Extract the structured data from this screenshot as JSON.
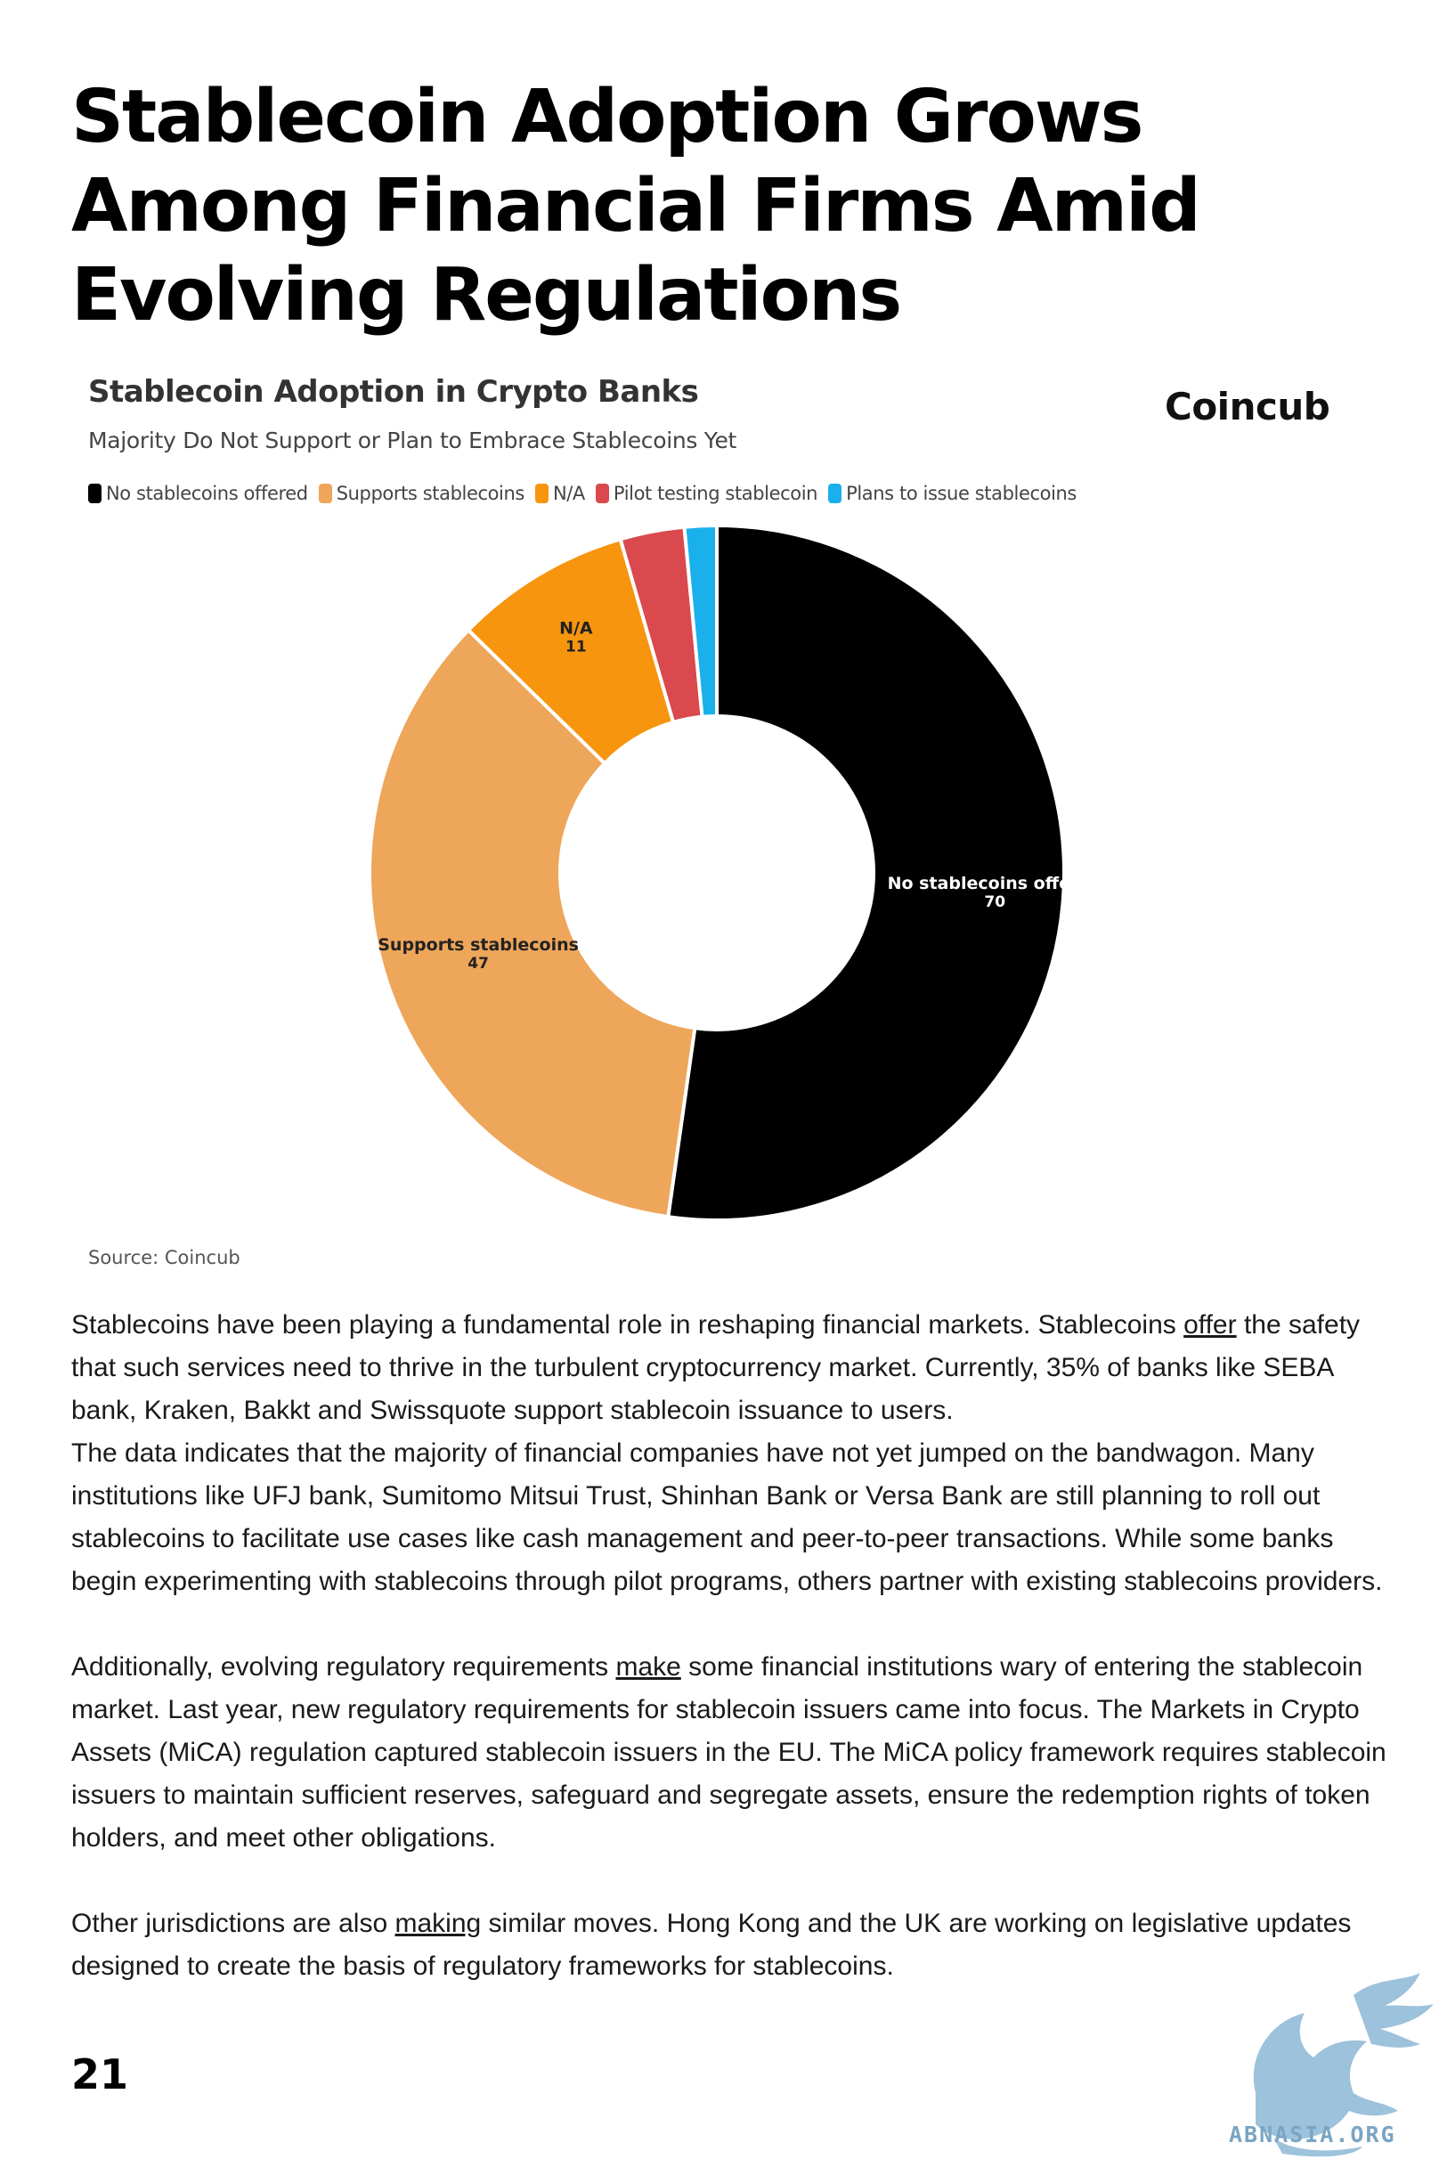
{
  "article": {
    "headline": "Stablecoin Adoption Grows Among Financial Firms Amid Evolving Regulations",
    "paragraph1_before_link": "Stablecoins have been playing a fundamental role in reshaping financial markets. Stablecoins ",
    "paragraph1_link": "offer",
    "paragraph1_after_link": " the safety that such services need to thrive in the turbulent cryptocurrency market. Currently, 35% of banks like SEBA bank, Kraken, Bakkt and Swissquote support stablecoin issuance to users.\nThe data indicates that the majority of financial companies have not yet jumped on the bandwagon. Many institutions like UFJ bank, Sumitomo Mitsui Trust, Shinhan Bank or Versa Bank are still planning to roll out stablecoins to facilitate use cases like cash management and peer-to-peer transactions. While some banks begin experimenting with stablecoins through pilot programs, others partner with existing stablecoins providers.",
    "paragraph2_before_link": "Additionally, evolving regulatory requirements ",
    "paragraph2_link": "make",
    "paragraph2_after_link": " some financial institutions wary of entering the stablecoin market. Last year, new regulatory requirements for stablecoin issuers came into focus. The Markets in Crypto Assets (MiCA) regulation captured stablecoin issuers in the EU. The MiCA policy framework requires stablecoin issuers to maintain sufficient reserves, safeguard and segregate assets, ensure the redemption rights of token holders, and meet other obligations.",
    "paragraph3_before_link": "Other jurisdictions are also ",
    "paragraph3_link": "making",
    "paragraph3_after_link": " similar moves. Hong Kong and the UK are working on legislative updates designed to create the basis of regulatory frameworks for stablecoins.",
    "page_number": "21"
  },
  "figure": {
    "brand": "Coincub",
    "source": "Source: Coincub"
  },
  "watermark": {
    "text": "ABNASIA.ORG",
    "color": "#7aa5c4",
    "icon": "griffin-logo-icon"
  },
  "chart_data": {
    "type": "pie",
    "variant": "donut",
    "title": "Stablecoin Adoption in Crypto Banks",
    "subtitle": "Majority Do Not Support or Plan to Embrace Stablecoins Yet",
    "legend_position": "top-left",
    "categories": [
      "No stablecoins offered",
      "Supports stablecoins",
      "N/A",
      "Pilot testing stablecoin",
      "Plans to issue stablecoins"
    ],
    "values": [
      70,
      47,
      11,
      4,
      2
    ],
    "colors": [
      "#000000",
      "#eea65a",
      "#f7950e",
      "#d9494e",
      "#1ab0ec"
    ],
    "data_labels": [
      {
        "name": "No stablecoins offered",
        "value": "70"
      },
      {
        "name": "Supports stablecoins",
        "value": "47"
      },
      {
        "name": "N/A",
        "value": "11"
      }
    ]
  }
}
